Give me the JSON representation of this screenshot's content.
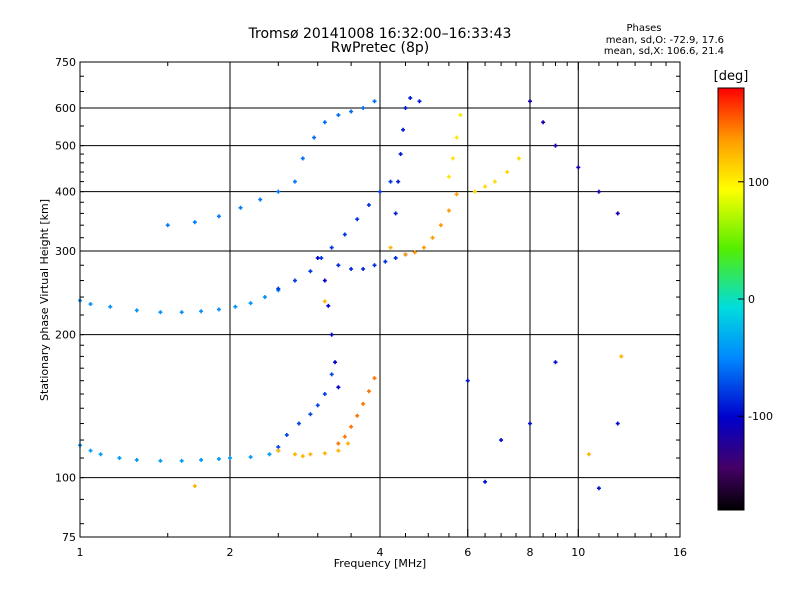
{
  "chart_data": {
    "type": "scatter",
    "title": "Tromsø 20141008 16:32:00–16:33:43",
    "subtitle": "RwPretec (8p)",
    "stats": {
      "heading": "Phases",
      "line1": "mean, sd,O: -72.9, 17.6",
      "line2": "mean, sd,X: 106.6, 21.4"
    },
    "xlabel": "Frequency [MHz]",
    "ylabel": "Stationary phase Virtual Height [km]",
    "x_scale": "log",
    "y_scale": "log",
    "xlim": [
      1,
      16
    ],
    "ylim": [
      75,
      750
    ],
    "x_ticks": [
      1,
      2,
      4,
      6,
      8,
      10,
      16
    ],
    "x_tick_labels": [
      "1",
      "2",
      "4",
      "6",
      "8",
      "10",
      "16"
    ],
    "y_ticks": [
      75,
      100,
      200,
      300,
      400,
      500,
      600,
      750
    ],
    "y_tick_labels": [
      "75",
      "100",
      "200",
      "300",
      "400",
      "500",
      "600",
      "750"
    ],
    "grid": true,
    "colorbar": {
      "label": "[deg]",
      "range": [
        -180,
        180
      ],
      "ticks": [
        100,
        0,
        -100
      ],
      "tick_labels": [
        "100",
        "0",
        "-100"
      ],
      "colors": [
        "#ff0000",
        "#ff9900",
        "#ffff00",
        "#00ee00",
        "#00dddd",
        "#0077ff",
        "#0000cc",
        "#440066",
        "#000000"
      ]
    },
    "series": [
      {
        "phase_deg": -40,
        "x": [
          1.0,
          1.05,
          1.1,
          1.2,
          1.3,
          1.45,
          1.6,
          1.75,
          1.9,
          2.0,
          2.2,
          2.4,
          2.5
        ],
        "y": [
          117,
          114,
          112,
          110,
          109,
          108.5,
          108.5,
          109,
          109.5,
          110,
          110.5,
          112,
          114
        ]
      },
      {
        "phase_deg": -75,
        "x": [
          2.5,
          2.6,
          2.75,
          2.9,
          3.0,
          3.1,
          3.2
        ],
        "y": [
          116,
          123,
          130,
          136,
          142,
          150,
          165
        ]
      },
      {
        "phase_deg": 130,
        "x": [
          2.5,
          2.7,
          2.9,
          3.1,
          3.3,
          3.45
        ],
        "y": [
          114,
          112,
          112,
          112.5,
          114,
          118
        ]
      },
      {
        "phase_deg": 150,
        "x": [
          3.3,
          3.4,
          3.5,
          3.6,
          3.7,
          3.8,
          3.9
        ],
        "y": [
          118,
          122,
          128,
          135,
          143,
          152,
          162
        ]
      },
      {
        "phase_deg": -45,
        "x": [
          1.0,
          1.05,
          1.15,
          1.3,
          1.45,
          1.6,
          1.75,
          1.9,
          2.05,
          2.2,
          2.35,
          2.5
        ],
        "y": [
          236,
          232,
          229,
          225,
          223,
          223,
          224,
          226,
          229,
          233,
          240,
          248
        ]
      },
      {
        "phase_deg": -80,
        "x": [
          2.5,
          2.7,
          2.9,
          3.05,
          3.2,
          3.4,
          3.6,
          3.8,
          4.0,
          4.2
        ],
        "y": [
          250,
          260,
          272,
          290,
          305,
          325,
          350,
          375,
          400,
          420
        ]
      },
      {
        "phase_deg": -100,
        "x": [
          3.0,
          3.1,
          3.15,
          3.2,
          3.25,
          3.3
        ],
        "y": [
          290,
          260,
          230,
          200,
          175,
          155
        ]
      },
      {
        "phase_deg": -85,
        "x": [
          3.3,
          3.5,
          3.7,
          3.9,
          4.1,
          4.3,
          4.5
        ],
        "y": [
          280,
          275,
          275,
          280,
          285,
          290,
          295
        ]
      },
      {
        "phase_deg": -90,
        "x": [
          4.3,
          4.35,
          4.4,
          4.45,
          4.5,
          4.6,
          4.8
        ],
        "y": [
          360,
          420,
          480,
          540,
          600,
          630,
          620
        ]
      },
      {
        "phase_deg": -60,
        "x": [
          2.8,
          2.95,
          3.1,
          3.3,
          3.5,
          3.7,
          3.9
        ],
        "y": [
          470,
          520,
          560,
          580,
          590,
          600,
          620
        ]
      },
      {
        "phase_deg": -55,
        "x": [
          1.5,
          1.7,
          1.9,
          2.1,
          2.3,
          2.5,
          2.7
        ],
        "y": [
          340,
          345,
          355,
          370,
          385,
          400,
          420
        ]
      },
      {
        "phase_deg": 140,
        "x": [
          4.5,
          4.7,
          4.9,
          5.1,
          5.3,
          5.5,
          5.7
        ],
        "y": [
          295,
          298,
          305,
          320,
          340,
          365,
          395
        ]
      },
      {
        "phase_deg": 110,
        "x": [
          5.5,
          5.6,
          5.7,
          5.8
        ],
        "y": [
          430,
          470,
          520,
          580
        ]
      },
      {
        "phase_deg": 115,
        "x": [
          6.2,
          6.5,
          6.8,
          7.2,
          7.6
        ],
        "y": [
          400,
          410,
          420,
          440,
          470
        ]
      },
      {
        "phase_deg": -110,
        "x": [
          8.0,
          8.5,
          9.0,
          10.0,
          11.0,
          12.0
        ],
        "y": [
          620,
          560,
          500,
          450,
          400,
          360
        ]
      },
      {
        "phase_deg": -95,
        "x": [
          6.0,
          6.5,
          7.0,
          8.0,
          9.0,
          11.0,
          12.0
        ],
        "y": [
          160,
          98,
          120,
          130,
          175,
          95,
          130
        ]
      },
      {
        "phase_deg": 130,
        "x": [
          1.7,
          2.8,
          3.1,
          4.2,
          10.5,
          12.2
        ],
        "y": [
          96,
          111,
          235,
          305,
          112,
          180
        ]
      }
    ]
  }
}
